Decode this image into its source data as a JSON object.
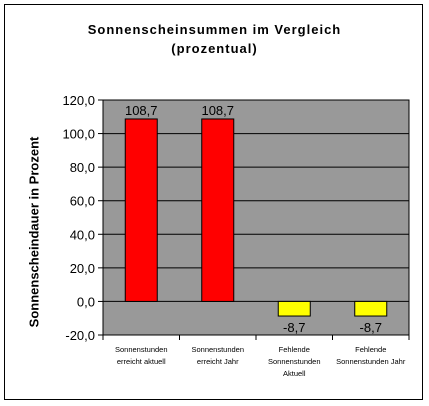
{
  "chart_data": {
    "type": "bar",
    "title_line1": "Sonnenscheinsummen im Vergleich",
    "title_line2": "(prozentual)",
    "ylabel": "Sonnenscheindauer in Prozent",
    "xlabel": "",
    "ylim": [
      -20,
      120
    ],
    "yticks": [
      "120,0",
      "100,0",
      "80,0",
      "60,0",
      "40,0",
      "20,0",
      "0,0",
      "-20,0"
    ],
    "ytick_values": [
      120,
      100,
      80,
      60,
      40,
      20,
      0,
      -20
    ],
    "grid": true,
    "legend": false,
    "plot_background": "#999999",
    "categories": [
      [
        "Sonnenstunden",
        "erreicht aktuell"
      ],
      [
        "Sonnenstunden",
        "erreicht Jahr"
      ],
      [
        "Fehlende",
        "Sonnenstunden",
        "Aktuell"
      ],
      [
        "Fehlende",
        "Sonnenstunden Jahr"
      ]
    ],
    "values": [
      108.7,
      108.7,
      -8.7,
      -8.7
    ],
    "data_labels": [
      "108,7",
      "108,7",
      "-8,7",
      "-8,7"
    ],
    "colors": [
      "#ff0000",
      "#ff0000",
      "#ffff00",
      "#ffff00"
    ]
  }
}
